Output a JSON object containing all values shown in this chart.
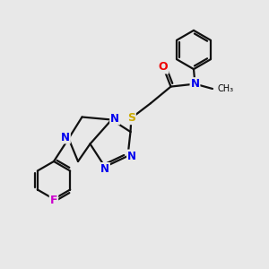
{
  "bg_color": "#e8e8e8",
  "atom_colors": {
    "C": "#000000",
    "N": "#0000ee",
    "O": "#ee0000",
    "S": "#ccaa00",
    "F": "#cc00cc"
  },
  "bond_color": "#111111",
  "bond_width": 1.6,
  "figsize": [
    3.0,
    3.0
  ],
  "dpi": 100
}
